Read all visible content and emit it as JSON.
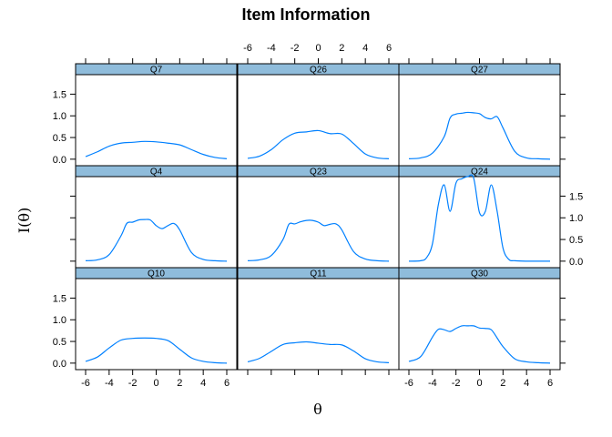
{
  "chart_data": {
    "type": "line",
    "title": "Item Information",
    "xlabel": "θ",
    "ylabel": "I(θ)",
    "layout": {
      "columns": 3,
      "rows": 3
    },
    "xlim": [
      -6.6,
      6.6
    ],
    "ylim": [
      -0.15,
      1.95
    ],
    "x_ticks": [
      -6,
      -4,
      -2,
      0,
      2,
      4,
      6
    ],
    "x_tick_labels": [
      "-6",
      "-4",
      "-2",
      "0",
      "2",
      "4",
      "6"
    ],
    "y_ticks": [
      0,
      0.5,
      1,
      1.5
    ],
    "y_tick_labels": [
      "0.0",
      "0.5",
      "1.0",
      "1.5"
    ],
    "line_color": "#0080ff",
    "strip_color": "#8fbcdb",
    "panels": [
      {
        "name": "Q7",
        "x": [
          -6,
          -5,
          -4,
          -3,
          -2,
          -1,
          0,
          1,
          2,
          3,
          4,
          5,
          6
        ],
        "y": [
          0.06,
          0.17,
          0.3,
          0.37,
          0.39,
          0.41,
          0.4,
          0.37,
          0.33,
          0.22,
          0.11,
          0.04,
          0.01
        ]
      },
      {
        "name": "Q26",
        "x": [
          -6,
          -5,
          -4,
          -3,
          -2,
          -1,
          0,
          1,
          2,
          3,
          4,
          5,
          6
        ],
        "y": [
          0.02,
          0.07,
          0.22,
          0.45,
          0.6,
          0.63,
          0.66,
          0.59,
          0.58,
          0.36,
          0.12,
          0.03,
          0.01
        ]
      },
      {
        "name": "Q27",
        "x": [
          -6,
          -5,
          -4,
          -3,
          -2.5,
          -2,
          -1.5,
          -1,
          -0.5,
          0,
          0.5,
          1,
          1.5,
          2,
          3,
          4,
          5,
          6
        ],
        "y": [
          0.01,
          0.03,
          0.14,
          0.52,
          0.95,
          1.04,
          1.06,
          1.08,
          1.07,
          1.05,
          0.96,
          0.93,
          0.98,
          0.72,
          0.18,
          0.03,
          0.01,
          0.0
        ]
      },
      {
        "name": "Q4",
        "x": [
          -6,
          -5,
          -4,
          -3,
          -2.5,
          -2,
          -1.5,
          -1,
          -0.5,
          0,
          0.5,
          1,
          1.5,
          2,
          3,
          4,
          5,
          6
        ],
        "y": [
          0.01,
          0.03,
          0.15,
          0.58,
          0.87,
          0.9,
          0.95,
          0.96,
          0.95,
          0.82,
          0.75,
          0.82,
          0.87,
          0.72,
          0.2,
          0.04,
          0.01,
          0.0
        ]
      },
      {
        "name": "Q23",
        "x": [
          -6,
          -5,
          -4,
          -3,
          -2.5,
          -2,
          -1.5,
          -1,
          -0.5,
          0,
          0.5,
          1,
          1.5,
          2,
          3,
          4,
          5,
          6
        ],
        "y": [
          0.01,
          0.03,
          0.13,
          0.5,
          0.85,
          0.86,
          0.91,
          0.94,
          0.94,
          0.9,
          0.82,
          0.85,
          0.86,
          0.72,
          0.22,
          0.05,
          0.01,
          0.0
        ]
      },
      {
        "name": "Q24",
        "x": [
          -6,
          -5,
          -4.5,
          -4,
          -3.5,
          -3,
          -2.5,
          -2,
          -1.5,
          -1,
          -0.5,
          0,
          0.5,
          1,
          1.5,
          2,
          2.5,
          3,
          4,
          5,
          6
        ],
        "y": [
          0.0,
          0.01,
          0.08,
          0.4,
          1.3,
          1.76,
          1.15,
          1.8,
          1.9,
          1.95,
          1.92,
          1.12,
          1.15,
          1.76,
          1.15,
          0.3,
          0.04,
          0.01,
          0.0,
          0.0,
          0.0
        ]
      },
      {
        "name": "Q10",
        "x": [
          -6,
          -5,
          -4,
          -3,
          -2,
          -1,
          0,
          1,
          2,
          3,
          4,
          5,
          6
        ],
        "y": [
          0.04,
          0.14,
          0.35,
          0.53,
          0.57,
          0.58,
          0.57,
          0.52,
          0.32,
          0.12,
          0.04,
          0.01,
          0.0
        ]
      },
      {
        "name": "Q11",
        "x": [
          -6,
          -5,
          -4,
          -3,
          -2,
          -1,
          0,
          1,
          2,
          3,
          4,
          5,
          6
        ],
        "y": [
          0.03,
          0.11,
          0.27,
          0.43,
          0.47,
          0.49,
          0.46,
          0.43,
          0.42,
          0.28,
          0.1,
          0.03,
          0.01
        ]
      },
      {
        "name": "Q30",
        "x": [
          -6,
          -5,
          -4,
          -3.5,
          -3,
          -2.5,
          -2,
          -1.5,
          -1,
          -0.5,
          0,
          0.5,
          1,
          1.5,
          2,
          3,
          4,
          5,
          6
        ],
        "y": [
          0.04,
          0.15,
          0.6,
          0.78,
          0.77,
          0.73,
          0.8,
          0.86,
          0.86,
          0.86,
          0.81,
          0.8,
          0.77,
          0.58,
          0.38,
          0.1,
          0.03,
          0.01,
          0.0
        ]
      }
    ]
  }
}
